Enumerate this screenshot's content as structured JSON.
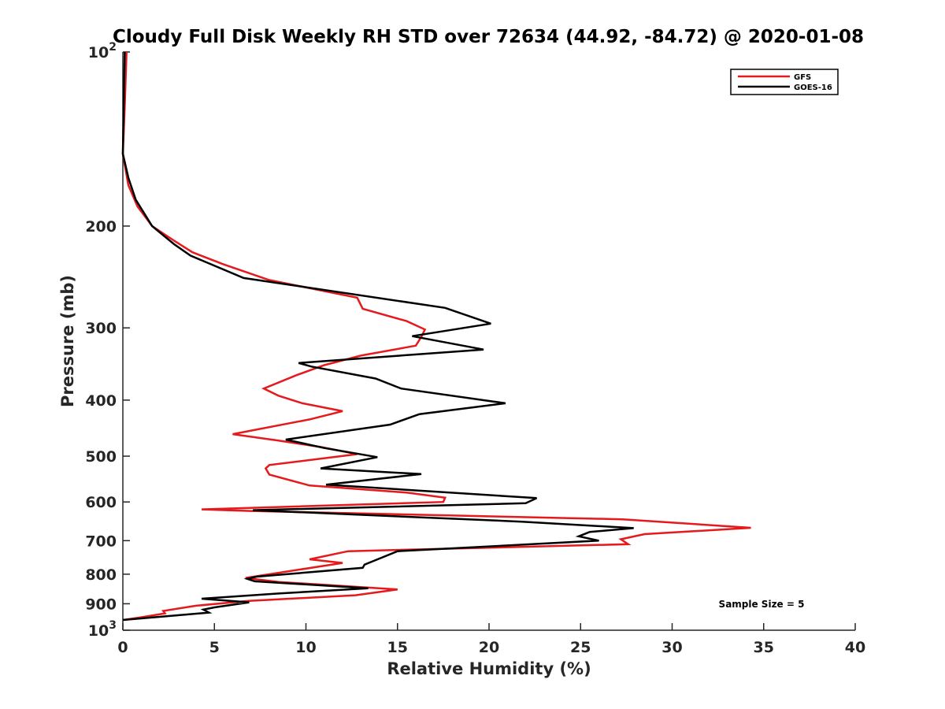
{
  "chart_data": {
    "type": "line",
    "title": "Cloudy Full Disk Weekly RH STD over 72634 (44.92, -84.72) @ 2020-01-08",
    "xlabel": "Relative Humidity (%)",
    "ylabel": "Pressure (mb)",
    "xlim": [
      0,
      40
    ],
    "ylim": [
      100,
      1000
    ],
    "y_scale": "log",
    "y_reversed": true,
    "x_ticks": [
      "0",
      "5",
      "10",
      "15",
      "20",
      "25",
      "30",
      "35",
      "40"
    ],
    "y_ticks": [
      {
        "value": 100,
        "base": "10",
        "exp": "2"
      },
      {
        "value": 200,
        "label": "200"
      },
      {
        "value": 300,
        "label": "300"
      },
      {
        "value": 400,
        "label": "400"
      },
      {
        "value": 500,
        "label": "500"
      },
      {
        "value": 600,
        "label": "600"
      },
      {
        "value": 700,
        "label": "700"
      },
      {
        "value": 800,
        "label": "800"
      },
      {
        "value": 900,
        "label": "900"
      },
      {
        "value": 1000,
        "base": "10",
        "exp": "3"
      }
    ],
    "grid": false,
    "legend_position": "top-right",
    "annotation": "Sample Size = 5",
    "series": [
      {
        "name": "GFS",
        "color": "#e41a1c",
        "points": [
          [
            0.2,
            100
          ],
          [
            0.1,
            125
          ],
          [
            0.0,
            150
          ],
          [
            0.3,
            170
          ],
          [
            0.8,
            185
          ],
          [
            1.6,
            200
          ],
          [
            2.8,
            212
          ],
          [
            3.8,
            222
          ],
          [
            5.5,
            233
          ],
          [
            8.0,
            248
          ],
          [
            12.8,
            266
          ],
          [
            13.1,
            278
          ],
          [
            15.5,
            292
          ],
          [
            16.5,
            302
          ],
          [
            16.3,
            311
          ],
          [
            16.0,
            322
          ],
          [
            13.0,
            335
          ],
          [
            11.0,
            348
          ],
          [
            9.5,
            362
          ],
          [
            7.7,
            382
          ],
          [
            8.5,
            393
          ],
          [
            9.8,
            405
          ],
          [
            12.0,
            418
          ],
          [
            10.2,
            432
          ],
          [
            6.0,
            458
          ],
          [
            8.5,
            470
          ],
          [
            10.8,
            482
          ],
          [
            12.8,
            496
          ],
          [
            8.0,
            518
          ],
          [
            7.8,
            525
          ],
          [
            8.0,
            538
          ],
          [
            10.2,
            562
          ],
          [
            15.5,
            578
          ],
          [
            17.6,
            590
          ],
          [
            17.5,
            600
          ],
          [
            4.3,
            618
          ],
          [
            7.0,
            622
          ],
          [
            27.3,
            643
          ],
          [
            34.3,
            665
          ],
          [
            28.5,
            682
          ],
          [
            27.2,
            696
          ],
          [
            27.6,
            710
          ],
          [
            12.3,
            730
          ],
          [
            10.2,
            754
          ],
          [
            12.0,
            765
          ],
          [
            6.7,
            812
          ],
          [
            8.5,
            825
          ],
          [
            15.0,
            850
          ],
          [
            12.7,
            870
          ],
          [
            6.8,
            890
          ],
          [
            4.0,
            907
          ],
          [
            2.2,
            926
          ],
          [
            2.3,
            935
          ],
          [
            1.0,
            950
          ],
          [
            0.0,
            960
          ]
        ]
      },
      {
        "name": "GOES-16",
        "color": "#000000",
        "points": [
          [
            0.1,
            100
          ],
          [
            0.0,
            150
          ],
          [
            0.3,
            165
          ],
          [
            0.7,
            180
          ],
          [
            1.6,
            200
          ],
          [
            2.8,
            215
          ],
          [
            3.7,
            225
          ],
          [
            6.6,
            246
          ],
          [
            17.6,
            277
          ],
          [
            20.1,
            295
          ],
          [
            15.8,
            310
          ],
          [
            19.7,
            327
          ],
          [
            9.6,
            345
          ],
          [
            10.3,
            350
          ],
          [
            13.8,
            367
          ],
          [
            15.2,
            382
          ],
          [
            20.9,
            405
          ],
          [
            16.2,
            423
          ],
          [
            14.6,
            441
          ],
          [
            8.9,
            468
          ],
          [
            11.0,
            484
          ],
          [
            13.9,
            502
          ],
          [
            10.8,
            525
          ],
          [
            16.3,
            537
          ],
          [
            11.1,
            560
          ],
          [
            22.6,
            591
          ],
          [
            22.0,
            603
          ],
          [
            7.1,
            620
          ],
          [
            21.8,
            649
          ],
          [
            27.9,
            666
          ],
          [
            25.5,
            676
          ],
          [
            24.9,
            688
          ],
          [
            26.0,
            700
          ],
          [
            15.0,
            730
          ],
          [
            13.2,
            770
          ],
          [
            13.1,
            780
          ],
          [
            7.3,
            808
          ],
          [
            6.8,
            815
          ],
          [
            7.2,
            823
          ],
          [
            13.4,
            846
          ],
          [
            8.5,
            864
          ],
          [
            4.3,
            882
          ],
          [
            6.9,
            895
          ],
          [
            5.0,
            913
          ],
          [
            4.4,
            921
          ],
          [
            4.7,
            932
          ],
          [
            0.0,
            960
          ]
        ]
      }
    ]
  }
}
